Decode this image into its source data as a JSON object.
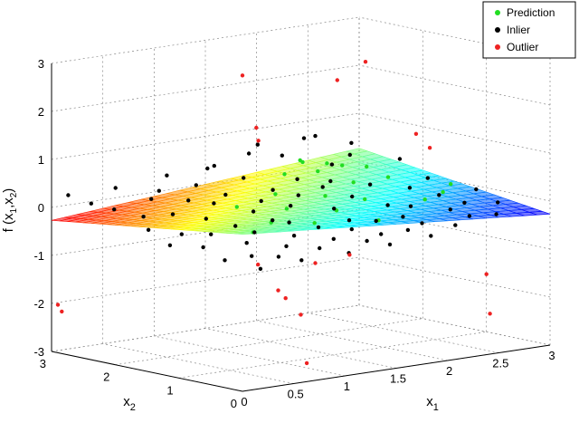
{
  "chart_data": {
    "type": "scatter",
    "projection": "3d",
    "xlabel": "x1",
    "ylabel": "x2",
    "zlabel": "f (x1,x2)",
    "xlim": [
      0,
      3
    ],
    "ylim": [
      0,
      3
    ],
    "zlim": [
      -3,
      3
    ],
    "grid": true,
    "legend_placement": "top-right",
    "x_ticks": [
      "0",
      "0.5",
      "1",
      "1.5",
      "2",
      "2.5",
      "3"
    ],
    "y_ticks": [
      "0",
      "1",
      "2",
      "3"
    ],
    "z_ticks": [
      "-3",
      "-2",
      "-1",
      "0",
      "1",
      "2",
      "3"
    ],
    "surface": {
      "name": "Prediction surface",
      "z_approx": 0,
      "colormap": "jet"
    },
    "series": [
      {
        "name": "Prediction",
        "color": "#22dd22",
        "points": [
          [
            2.3,
            2.8,
            0.3
          ],
          [
            2.2,
            2.6,
            0.35
          ],
          [
            2.5,
            2.7,
            0.2
          ],
          [
            2.7,
            2.4,
            0.15
          ],
          [
            2.4,
            2.3,
            0.3
          ],
          [
            1.9,
            2.4,
            0.25
          ],
          [
            2.1,
            2.2,
            0.3
          ],
          [
            2.6,
            1.9,
            0.1
          ],
          [
            2.9,
            1.4,
            0.0
          ],
          [
            2.2,
            1.8,
            0.15
          ],
          [
            1.8,
            1.6,
            0.05
          ],
          [
            1.5,
            1.9,
            0.1
          ],
          [
            1.3,
            1.4,
            0.0
          ],
          [
            1.0,
            1.7,
            0.05
          ],
          [
            0.9,
            1.0,
            -0.05
          ],
          [
            1.2,
            0.8,
            -0.1
          ],
          [
            1.6,
            1.1,
            -0.05
          ],
          [
            2.0,
            1.3,
            0.0
          ],
          [
            2.4,
            1.0,
            -0.05
          ],
          [
            0.6,
            0.8,
            -0.1
          ],
          [
            1.7,
            0.6,
            -0.15
          ],
          [
            2.7,
            1.2,
            -0.05
          ]
        ]
      },
      {
        "name": "Inlier",
        "color": "#000000",
        "points": [
          [
            0.1,
            2.9,
            0.25
          ],
          [
            0.2,
            2.7,
            0.1
          ],
          [
            0.3,
            2.5,
            0.0
          ],
          [
            0.5,
            2.8,
            0.3
          ],
          [
            0.6,
            2.4,
            0.15
          ],
          [
            0.4,
            2.2,
            -0.1
          ],
          [
            0.8,
            2.6,
            0.2
          ],
          [
            0.9,
            2.3,
            0.05
          ],
          [
            1.0,
            2.8,
            0.4
          ],
          [
            1.1,
            2.5,
            0.25
          ],
          [
            1.2,
            2.2,
            0.1
          ],
          [
            1.4,
            2.7,
            0.5
          ],
          [
            1.5,
            2.4,
            0.3
          ],
          [
            1.6,
            2.1,
            0.1
          ],
          [
            1.8,
            2.8,
            0.6
          ],
          [
            1.9,
            2.2,
            0.2
          ],
          [
            2.0,
            2.6,
            0.55
          ],
          [
            2.1,
            2.0,
            0.15
          ],
          [
            2.3,
            2.3,
            0.35
          ],
          [
            2.4,
            2.9,
            0.7
          ],
          [
            2.6,
            2.5,
            0.4
          ],
          [
            2.8,
            2.8,
            0.5
          ],
          [
            2.9,
            2.2,
            0.3
          ],
          [
            0.2,
            1.8,
            -0.2
          ],
          [
            0.4,
            1.6,
            -0.3
          ],
          [
            0.5,
            1.9,
            0.0
          ],
          [
            0.7,
            1.7,
            -0.1
          ],
          [
            0.8,
            1.4,
            -0.2
          ],
          [
            0.9,
            1.9,
            0.1
          ],
          [
            1.1,
            1.6,
            -0.05
          ],
          [
            1.2,
            1.2,
            -0.2
          ],
          [
            1.3,
            1.8,
            0.05
          ],
          [
            1.4,
            1.5,
            0.0
          ],
          [
            1.6,
            1.7,
            0.1
          ],
          [
            1.7,
            1.3,
            -0.1
          ],
          [
            1.9,
            1.8,
            0.15
          ],
          [
            2.0,
            1.5,
            0.0
          ],
          [
            2.1,
            1.1,
            -0.1
          ],
          [
            2.3,
            1.7,
            0.1
          ],
          [
            2.5,
            1.4,
            0.05
          ],
          [
            2.6,
            1.1,
            -0.05
          ],
          [
            2.8,
            1.6,
            0.1
          ],
          [
            2.9,
            1.0,
            0.0
          ],
          [
            0.1,
            1.3,
            -0.35
          ],
          [
            0.3,
            1.1,
            -0.4
          ],
          [
            0.5,
            1.3,
            -0.25
          ],
          [
            0.6,
            0.9,
            -0.35
          ],
          [
            0.8,
            1.1,
            -0.25
          ],
          [
            1.0,
            0.8,
            -0.3
          ],
          [
            1.1,
            1.3,
            -0.15
          ],
          [
            1.3,
            0.9,
            -0.25
          ],
          [
            1.5,
            0.7,
            -0.3
          ],
          [
            1.6,
            0.9,
            -0.2
          ],
          [
            1.8,
            0.8,
            -0.25
          ],
          [
            2.0,
            0.7,
            -0.2
          ],
          [
            2.2,
            0.9,
            -0.1
          ],
          [
            2.4,
            0.6,
            -0.15
          ],
          [
            2.6,
            0.7,
            -0.1
          ],
          [
            2.8,
            0.5,
            -0.1
          ],
          [
            0.2,
            0.6,
            -0.5
          ],
          [
            0.4,
            0.5,
            -0.45
          ],
          [
            0.6,
            0.4,
            -0.5
          ],
          [
            0.8,
            0.6,
            -0.4
          ],
          [
            1.0,
            0.4,
            -0.45
          ],
          [
            1.2,
            0.5,
            -0.35
          ],
          [
            1.4,
            0.3,
            -0.4
          ],
          [
            1.6,
            0.4,
            -0.35
          ],
          [
            1.8,
            0.3,
            -0.3
          ],
          [
            2.0,
            0.4,
            -0.25
          ],
          [
            2.2,
            0.2,
            -0.3
          ],
          [
            2.4,
            0.3,
            -0.2
          ],
          [
            2.6,
            0.2,
            -0.2
          ],
          [
            0.3,
            0.2,
            -0.6
          ],
          [
            0.7,
            0.2,
            -0.55
          ],
          [
            1.1,
            0.1,
            -0.5
          ],
          [
            1.5,
            0.1,
            -0.45
          ],
          [
            1.9,
            0.1,
            -0.4
          ],
          [
            0.9,
            2.0,
            0.8
          ],
          [
            1.7,
            2.5,
            0.9
          ],
          [
            2.2,
            2.4,
            0.95
          ]
        ]
      },
      {
        "name": "Outlier",
        "color": "#ee2222",
        "points": [
          [
            0.0,
            2.9,
            -2.0
          ],
          [
            0.1,
            3.0,
            -2.2
          ],
          [
            1.8,
            2.9,
            2.2
          ],
          [
            0.9,
            1.2,
            1.6
          ],
          [
            2.6,
            2.7,
            1.9
          ],
          [
            3.0,
            2.9,
            2.1
          ],
          [
            2.5,
            1.3,
            1.2
          ],
          [
            1.5,
            2.2,
            1.4
          ],
          [
            2.2,
            0.6,
            1.2
          ],
          [
            0.4,
            0.4,
            -0.6
          ],
          [
            2.1,
            1.7,
            -1.3
          ],
          [
            2.2,
            2.4,
            -1.7
          ],
          [
            1.9,
            2.5,
            -2.2
          ],
          [
            2.6,
            0.3,
            -2.3
          ],
          [
            3.0,
            1.0,
            -1.8
          ],
          [
            1.5,
            1.5,
            -2.3
          ],
          [
            1.0,
            0.6,
            -2.9
          ],
          [
            1.6,
            1.9,
            -2.1
          ]
        ]
      }
    ]
  }
}
